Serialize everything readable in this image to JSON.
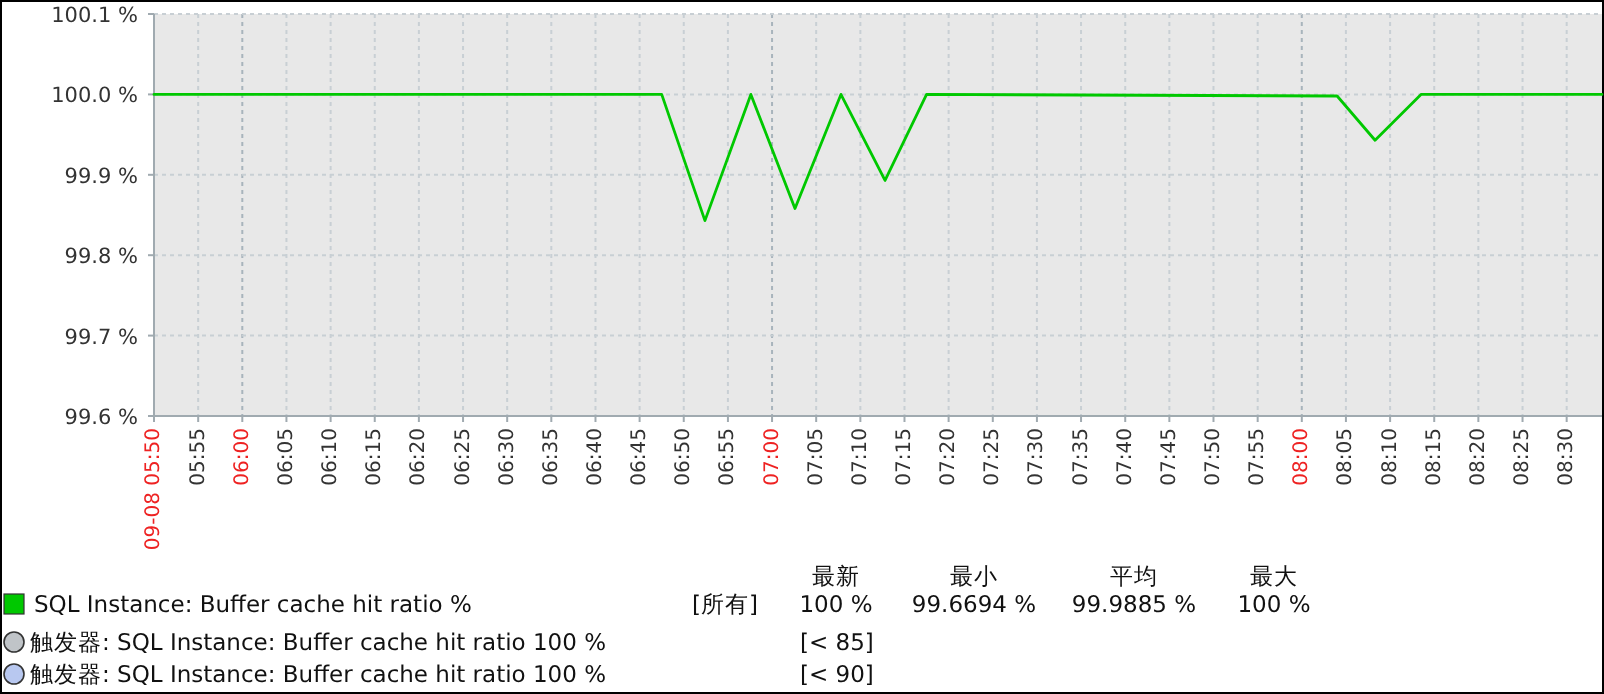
{
  "chart_data": {
    "type": "line",
    "x": [
      5.8333,
      6.7917,
      6.8733,
      6.96,
      7.0433,
      7.13,
      7.2133,
      7.2917,
      8.0667,
      8.1383,
      8.225,
      8.5667
    ],
    "series": [
      {
        "name": "SQL Instance: Buffer cache hit ratio %",
        "color": "#00c800",
        "values": [
          100.0,
          100.0,
          99.843,
          100.0,
          99.858,
          100.0,
          99.893,
          100.0,
          99.998,
          99.943,
          100.0,
          100.0
        ]
      }
    ],
    "xlim": [
      5.8333,
      8.5667
    ],
    "xticks": [
      {
        "value": 5.8333,
        "label": "09-08 05:50"
      },
      {
        "value": 5.9167,
        "label": "05:55"
      },
      {
        "value": 6,
        "label": "06:00"
      },
      {
        "value": 6.0833,
        "label": "06:05"
      },
      {
        "value": 6.1667,
        "label": "06:10"
      },
      {
        "value": 6.25,
        "label": "06:15"
      },
      {
        "value": 6.3333,
        "label": "06:20"
      },
      {
        "value": 6.4167,
        "label": "06:25"
      },
      {
        "value": 6.5,
        "label": "06:30"
      },
      {
        "value": 6.5833,
        "label": "06:35"
      },
      {
        "value": 6.6667,
        "label": "06:40"
      },
      {
        "value": 6.75,
        "label": "06:45"
      },
      {
        "value": 6.8333,
        "label": "06:50"
      },
      {
        "value": 6.9167,
        "label": "06:55"
      },
      {
        "value": 7,
        "label": "07:00"
      },
      {
        "value": 7.0833,
        "label": "07:05"
      },
      {
        "value": 7.1667,
        "label": "07:10"
      },
      {
        "value": 7.25,
        "label": "07:15"
      },
      {
        "value": 7.3333,
        "label": "07:20"
      },
      {
        "value": 7.4167,
        "label": "07:25"
      },
      {
        "value": 7.5,
        "label": "07:30"
      },
      {
        "value": 7.5833,
        "label": "07:35"
      },
      {
        "value": 7.6667,
        "label": "07:40"
      },
      {
        "value": 7.75,
        "label": "07:45"
      },
      {
        "value": 7.8333,
        "label": "07:50"
      },
      {
        "value": 7.9167,
        "label": "07:55"
      },
      {
        "value": 8,
        "label": "08:00"
      },
      {
        "value": 8.0833,
        "label": "08:05"
      },
      {
        "value": 8.1667,
        "label": "08:10"
      },
      {
        "value": 8.25,
        "label": "08:15"
      },
      {
        "value": 8.3333,
        "label": "08:20"
      },
      {
        "value": 8.4167,
        "label": "08:25"
      },
      {
        "value": 8.5,
        "label": "08:30"
      }
    ],
    "ylim": [
      99.6,
      100.1
    ],
    "yticks": [
      {
        "value": 99.6,
        "label": "99.6 %"
      },
      {
        "value": 99.7,
        "label": "99.7 %"
      },
      {
        "value": 99.8,
        "label": "99.8 %"
      },
      {
        "value": 99.9,
        "label": "99.9 %"
      },
      {
        "value": 100.0,
        "label": "100.0 %"
      },
      {
        "value": 100.1,
        "label": "100.1 %"
      }
    ],
    "grid": true,
    "legend": "bottom left",
    "marker": "none",
    "line_style": "solid",
    "annotations": [
      "[所有]",
      "最新",
      "最小",
      "平均",
      "最大",
      "100 %",
      "99.6694 %",
      "99.9885 %",
      "100 %",
      "触发器: SQL Instance: Buffer cache hit ratio 100 %",
      "[< 85]",
      "触发器: SQL Instance: Buffer cache hit ratio 100 %",
      "[< 90]"
    ]
  }
}
